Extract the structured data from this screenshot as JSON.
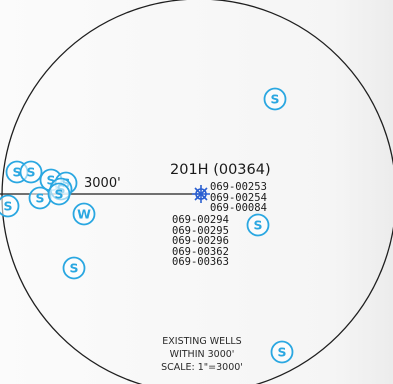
{
  "well": {
    "title": "201H  (00364)",
    "ids_right": [
      "069-00253",
      "069-00254",
      "069-00084"
    ],
    "ids_below": [
      "069-00294",
      "069-00295",
      "069-00296",
      "069-00362",
      "069-00363"
    ]
  },
  "radius_label": "3000'",
  "legend": {
    "line1": "EXISTING WELLS",
    "line2": "WITHIN 3000'",
    "line3": "SCALE: 1\"=3000'"
  },
  "symbols": {
    "existing_well_letter": "S",
    "water_well_letter": "W",
    "symbol_color": "#2aa7e1",
    "line_color": "#1a1a1a"
  }
}
